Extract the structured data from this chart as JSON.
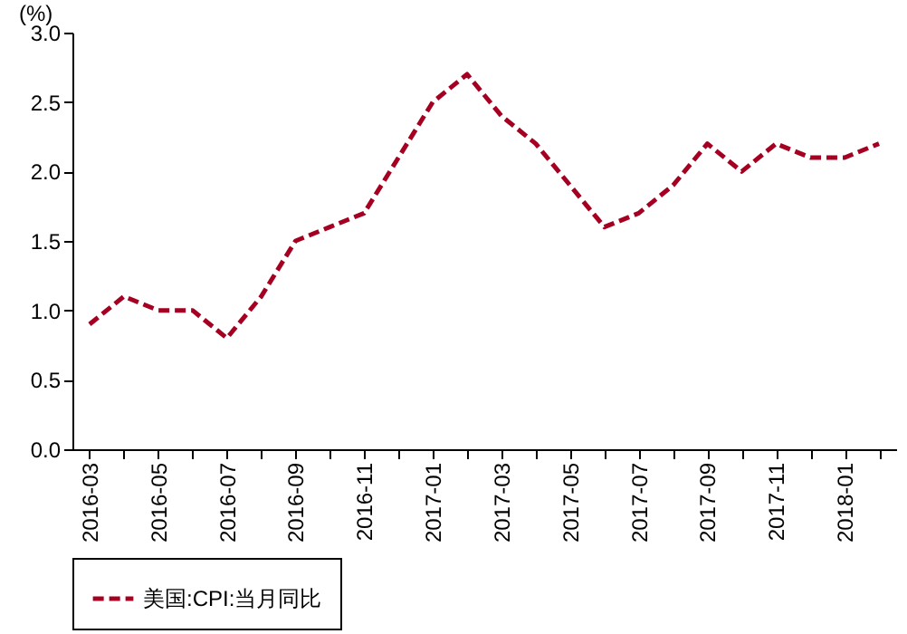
{
  "chart_data": {
    "type": "line",
    "ylabel": "(%)",
    "categories": [
      "2016-03",
      null,
      "2016-05",
      null,
      "2016-07",
      null,
      "2016-09",
      null,
      "2016-11",
      null,
      "2017-01",
      null,
      "2017-03",
      null,
      "2017-05",
      null,
      "2017-07",
      null,
      "2017-09",
      null,
      "2017-11",
      null,
      "2018-01",
      null
    ],
    "series": [
      {
        "name": "美国:CPI:当月同比",
        "color": "#a50021",
        "values": [
          0.9,
          1.1,
          1.0,
          1.0,
          0.8,
          1.1,
          1.5,
          1.6,
          1.7,
          2.1,
          2.5,
          2.7,
          2.4,
          2.2,
          1.9,
          1.6,
          1.7,
          1.9,
          2.2,
          2.0,
          2.2,
          2.1,
          2.1,
          2.2
        ]
      }
    ],
    "ylim": [
      0,
      3
    ],
    "yticks": [
      {
        "value": 0,
        "label": "0.0"
      },
      {
        "value": 0.5,
        "label": "0.5"
      },
      {
        "value": 1,
        "label": "1.0"
      },
      {
        "value": 1.5,
        "label": "1.5"
      },
      {
        "value": 2,
        "label": "2.0"
      },
      {
        "value": 2.5,
        "label": "2.5"
      },
      {
        "value": 3,
        "label": "3.0"
      }
    ],
    "grid": false,
    "legend": "bottom",
    "marker": "none",
    "line_style": "dashed"
  }
}
